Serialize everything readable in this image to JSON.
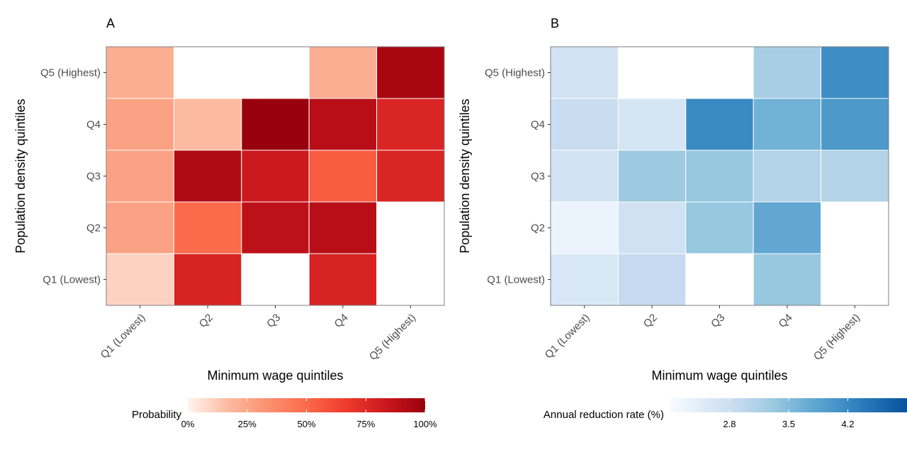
{
  "chart_data": [
    {
      "type": "heatmap",
      "panel_label": "A",
      "xlabel": "Minimum wage quintiles",
      "ylabel": "Population density quintiles",
      "x_categories": [
        "Q1 (Lowest)",
        "Q2",
        "Q3",
        "Q4",
        "Q5 (Highest)"
      ],
      "y_categories": [
        "Q1 (Lowest)",
        "Q2",
        "Q3",
        "Q4",
        "Q5 (Highest)"
      ],
      "values": [
        [
          0.1,
          0.78,
          null,
          0.78,
          null
        ],
        [
          0.27,
          0.5,
          0.88,
          0.9,
          null
        ],
        [
          0.27,
          0.93,
          0.83,
          0.55,
          0.77
        ],
        [
          0.27,
          0.17,
          1.0,
          0.9,
          0.77
        ],
        [
          0.22,
          null,
          null,
          0.22,
          0.95
        ]
      ],
      "legend": {
        "title": "Probability",
        "ticks": [
          "0%",
          "25%",
          "50%",
          "75%",
          "100%"
        ],
        "range": [
          0,
          1
        ],
        "colors": [
          "#fff5f0",
          "#fcbba1",
          "#fc9272",
          "#fb6a4a",
          "#ef3b2c",
          "#cb181d",
          "#99000d"
        ]
      },
      "grid": false
    },
    {
      "type": "heatmap",
      "panel_label": "B",
      "xlabel": "Minimum wage quintiles",
      "ylabel": "Population density quintiles",
      "x_categories": [
        "Q1 (Lowest)",
        "Q2",
        "Q3",
        "Q4",
        "Q5 (Highest)"
      ],
      "y_categories": [
        "Q1 (Lowest)",
        "Q2",
        "Q3",
        "Q4",
        "Q5 (Highest)"
      ],
      "values": [
        [
          2.6,
          2.9,
          null,
          3.35,
          null
        ],
        [
          2.3,
          2.75,
          3.35,
          3.8,
          null
        ],
        [
          2.7,
          3.3,
          3.35,
          3.1,
          3.1
        ],
        [
          2.85,
          2.65,
          4.2,
          3.65,
          4.0
        ],
        [
          2.7,
          null,
          null,
          3.2,
          4.15
        ]
      ],
      "legend": {
        "title": "Annual reduction rate (%)",
        "ticks": [
          "2.8",
          "3.5",
          "4.2"
        ],
        "tick_values": [
          2.8,
          3.5,
          4.2
        ],
        "range": [
          2.1,
          4.9
        ],
        "colors": [
          "#f7fbff",
          "#deebf7",
          "#c6dbef",
          "#9ecae1",
          "#6baed6",
          "#4292c6",
          "#2171b5",
          "#08519c"
        ]
      },
      "grid": false
    }
  ]
}
